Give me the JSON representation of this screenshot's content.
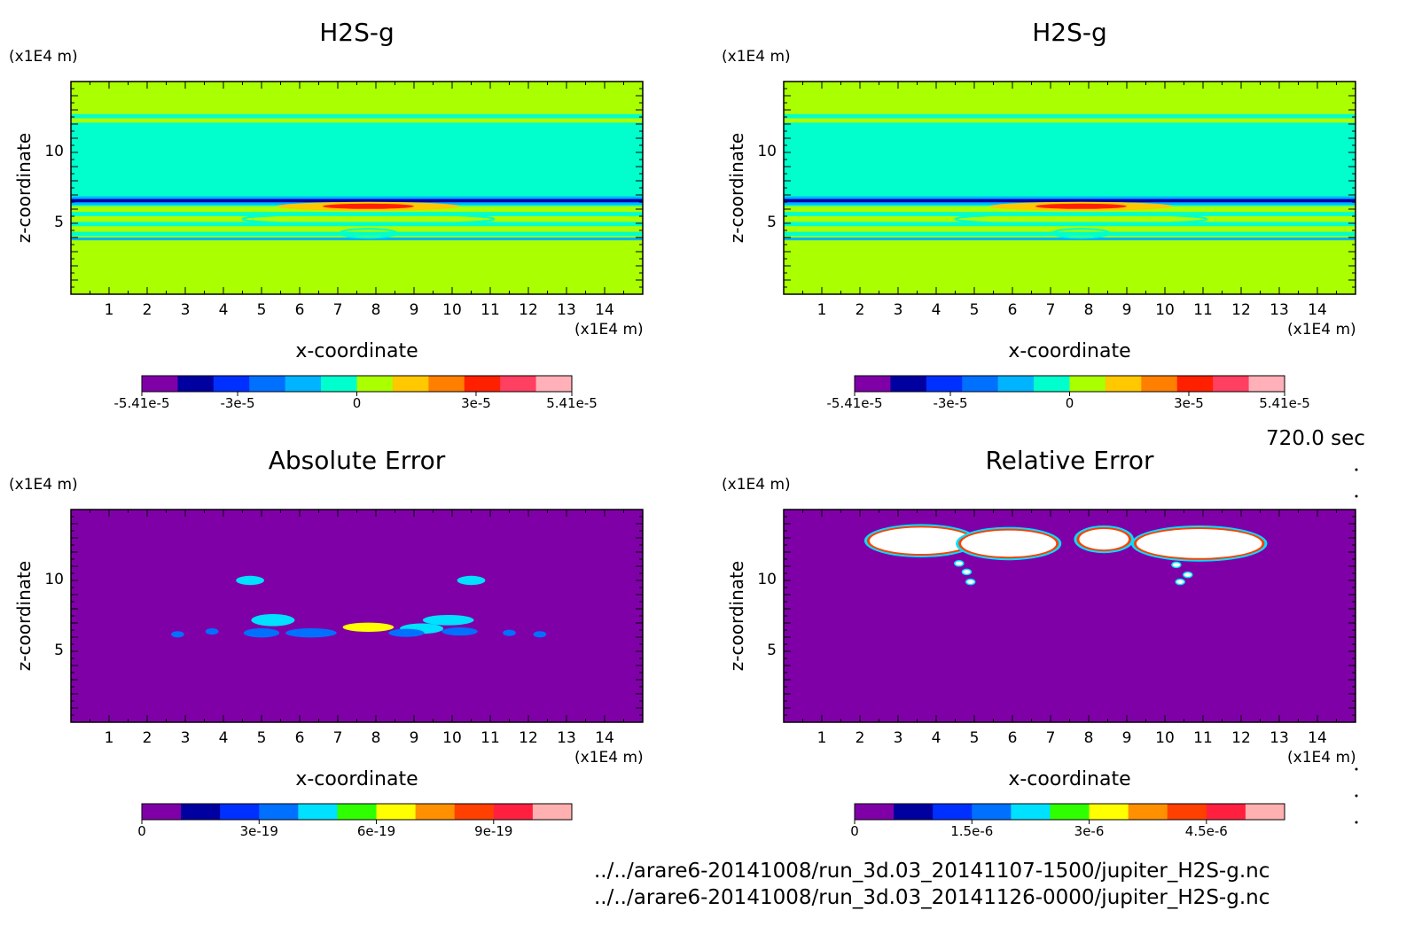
{
  "time_label": "720.0 sec",
  "files": [
    "../../arare6-20141008/run_3d.03_20141107-1500/jupiter_H2S-g.nc",
    "../../arare6-20141008/run_3d.03_20141126-0000/jupiter_H2S-g.nc"
  ],
  "chart_data": [
    {
      "type": "heatmap",
      "title": "H2S-g",
      "xlabel": "x-coordinate",
      "ylabel": "z-coordinate",
      "x_unit": "(x1E4 m)",
      "y_unit": "(x1E4 m)",
      "xlim": [
        0,
        15
      ],
      "ylim": [
        0,
        15
      ],
      "x_ticks": [
        1,
        2,
        3,
        4,
        5,
        6,
        7,
        8,
        9,
        10,
        11,
        12,
        13,
        14
      ],
      "y_ticks": [
        5,
        10
      ],
      "colorbar": {
        "levels": 11,
        "colors": [
          "#8000a8",
          "#0000a0",
          "#0030ff",
          "#0070ff",
          "#00b4ff",
          "#00ffcc",
          "#aaff00",
          "#ffc800",
          "#ff8000",
          "#ff2000",
          "#ff4060",
          "#ffb0b8"
        ],
        "tick_labels": [
          "-5.41e-5",
          "-3e-5",
          "0",
          "3e-5",
          "5.41e-5"
        ],
        "tick_values": [
          -5.41e-05,
          -3e-05,
          0,
          3e-05,
          5.41e-05
        ],
        "range": [
          -5.41e-05,
          5.41e-05
        ]
      }
    },
    {
      "type": "heatmap",
      "title": "H2S-g",
      "xlabel": "x-coordinate",
      "ylabel": "z-coordinate",
      "x_unit": "(x1E4 m)",
      "y_unit": "(x1E4 m)",
      "xlim": [
        0,
        15
      ],
      "ylim": [
        0,
        15
      ],
      "x_ticks": [
        1,
        2,
        3,
        4,
        5,
        6,
        7,
        8,
        9,
        10,
        11,
        12,
        13,
        14
      ],
      "y_ticks": [
        5,
        10
      ],
      "colorbar": {
        "levels": 11,
        "colors": [
          "#8000a8",
          "#0000a0",
          "#0030ff",
          "#0070ff",
          "#00b4ff",
          "#00ffcc",
          "#aaff00",
          "#ffc800",
          "#ff8000",
          "#ff2000",
          "#ff4060",
          "#ffb0b8"
        ],
        "tick_labels": [
          "-5.41e-5",
          "-3e-5",
          "0",
          "3e-5",
          "5.41e-5"
        ],
        "tick_values": [
          -5.41e-05,
          -3e-05,
          0,
          3e-05,
          5.41e-05
        ],
        "range": [
          -5.41e-05,
          5.41e-05
        ]
      }
    },
    {
      "type": "heatmap",
      "title": "Absolute Error",
      "xlabel": "x-coordinate",
      "ylabel": "z-coordinate",
      "x_unit": "(x1E4 m)",
      "y_unit": "(x1E4 m)",
      "xlim": [
        0,
        15
      ],
      "ylim": [
        0,
        15
      ],
      "x_ticks": [
        1,
        2,
        3,
        4,
        5,
        6,
        7,
        8,
        9,
        10,
        11,
        12,
        13,
        14
      ],
      "y_ticks": [
        5,
        10
      ],
      "colorbar": {
        "levels": 11,
        "colors": [
          "#8000a8",
          "#0000a0",
          "#0030ff",
          "#0070ff",
          "#00e0ff",
          "#30ff00",
          "#ffff00",
          "#ff9000",
          "#ff4000",
          "#ff2040",
          "#ffb0b0"
        ],
        "tick_labels": [
          "0",
          "3e-19",
          "6e-19",
          "9e-19"
        ],
        "tick_values": [
          0,
          3e-19,
          6e-19,
          9e-19
        ],
        "range": [
          0,
          1.1e-18
        ]
      }
    },
    {
      "type": "heatmap",
      "title": "Relative Error",
      "xlabel": "x-coordinate",
      "ylabel": "z-coordinate",
      "x_unit": "(x1E4 m)",
      "y_unit": "(x1E4 m)",
      "xlim": [
        0,
        15
      ],
      "ylim": [
        0,
        15
      ],
      "x_ticks": [
        1,
        2,
        3,
        4,
        5,
        6,
        7,
        8,
        9,
        10,
        11,
        12,
        13,
        14
      ],
      "y_ticks": [
        5,
        10
      ],
      "colorbar": {
        "levels": 11,
        "colors": [
          "#8000a8",
          "#0000a0",
          "#0030ff",
          "#0070ff",
          "#00e0ff",
          "#30ff00",
          "#ffff00",
          "#ff9000",
          "#ff4000",
          "#ff2040",
          "#ffb0b0"
        ],
        "tick_labels": [
          "0",
          "1.5e-6",
          "3e-6",
          "4.5e-6"
        ],
        "tick_values": [
          0,
          1.5e-06,
          3e-06,
          4.5e-06
        ],
        "range": [
          0,
          5.5e-06
        ]
      }
    }
  ]
}
